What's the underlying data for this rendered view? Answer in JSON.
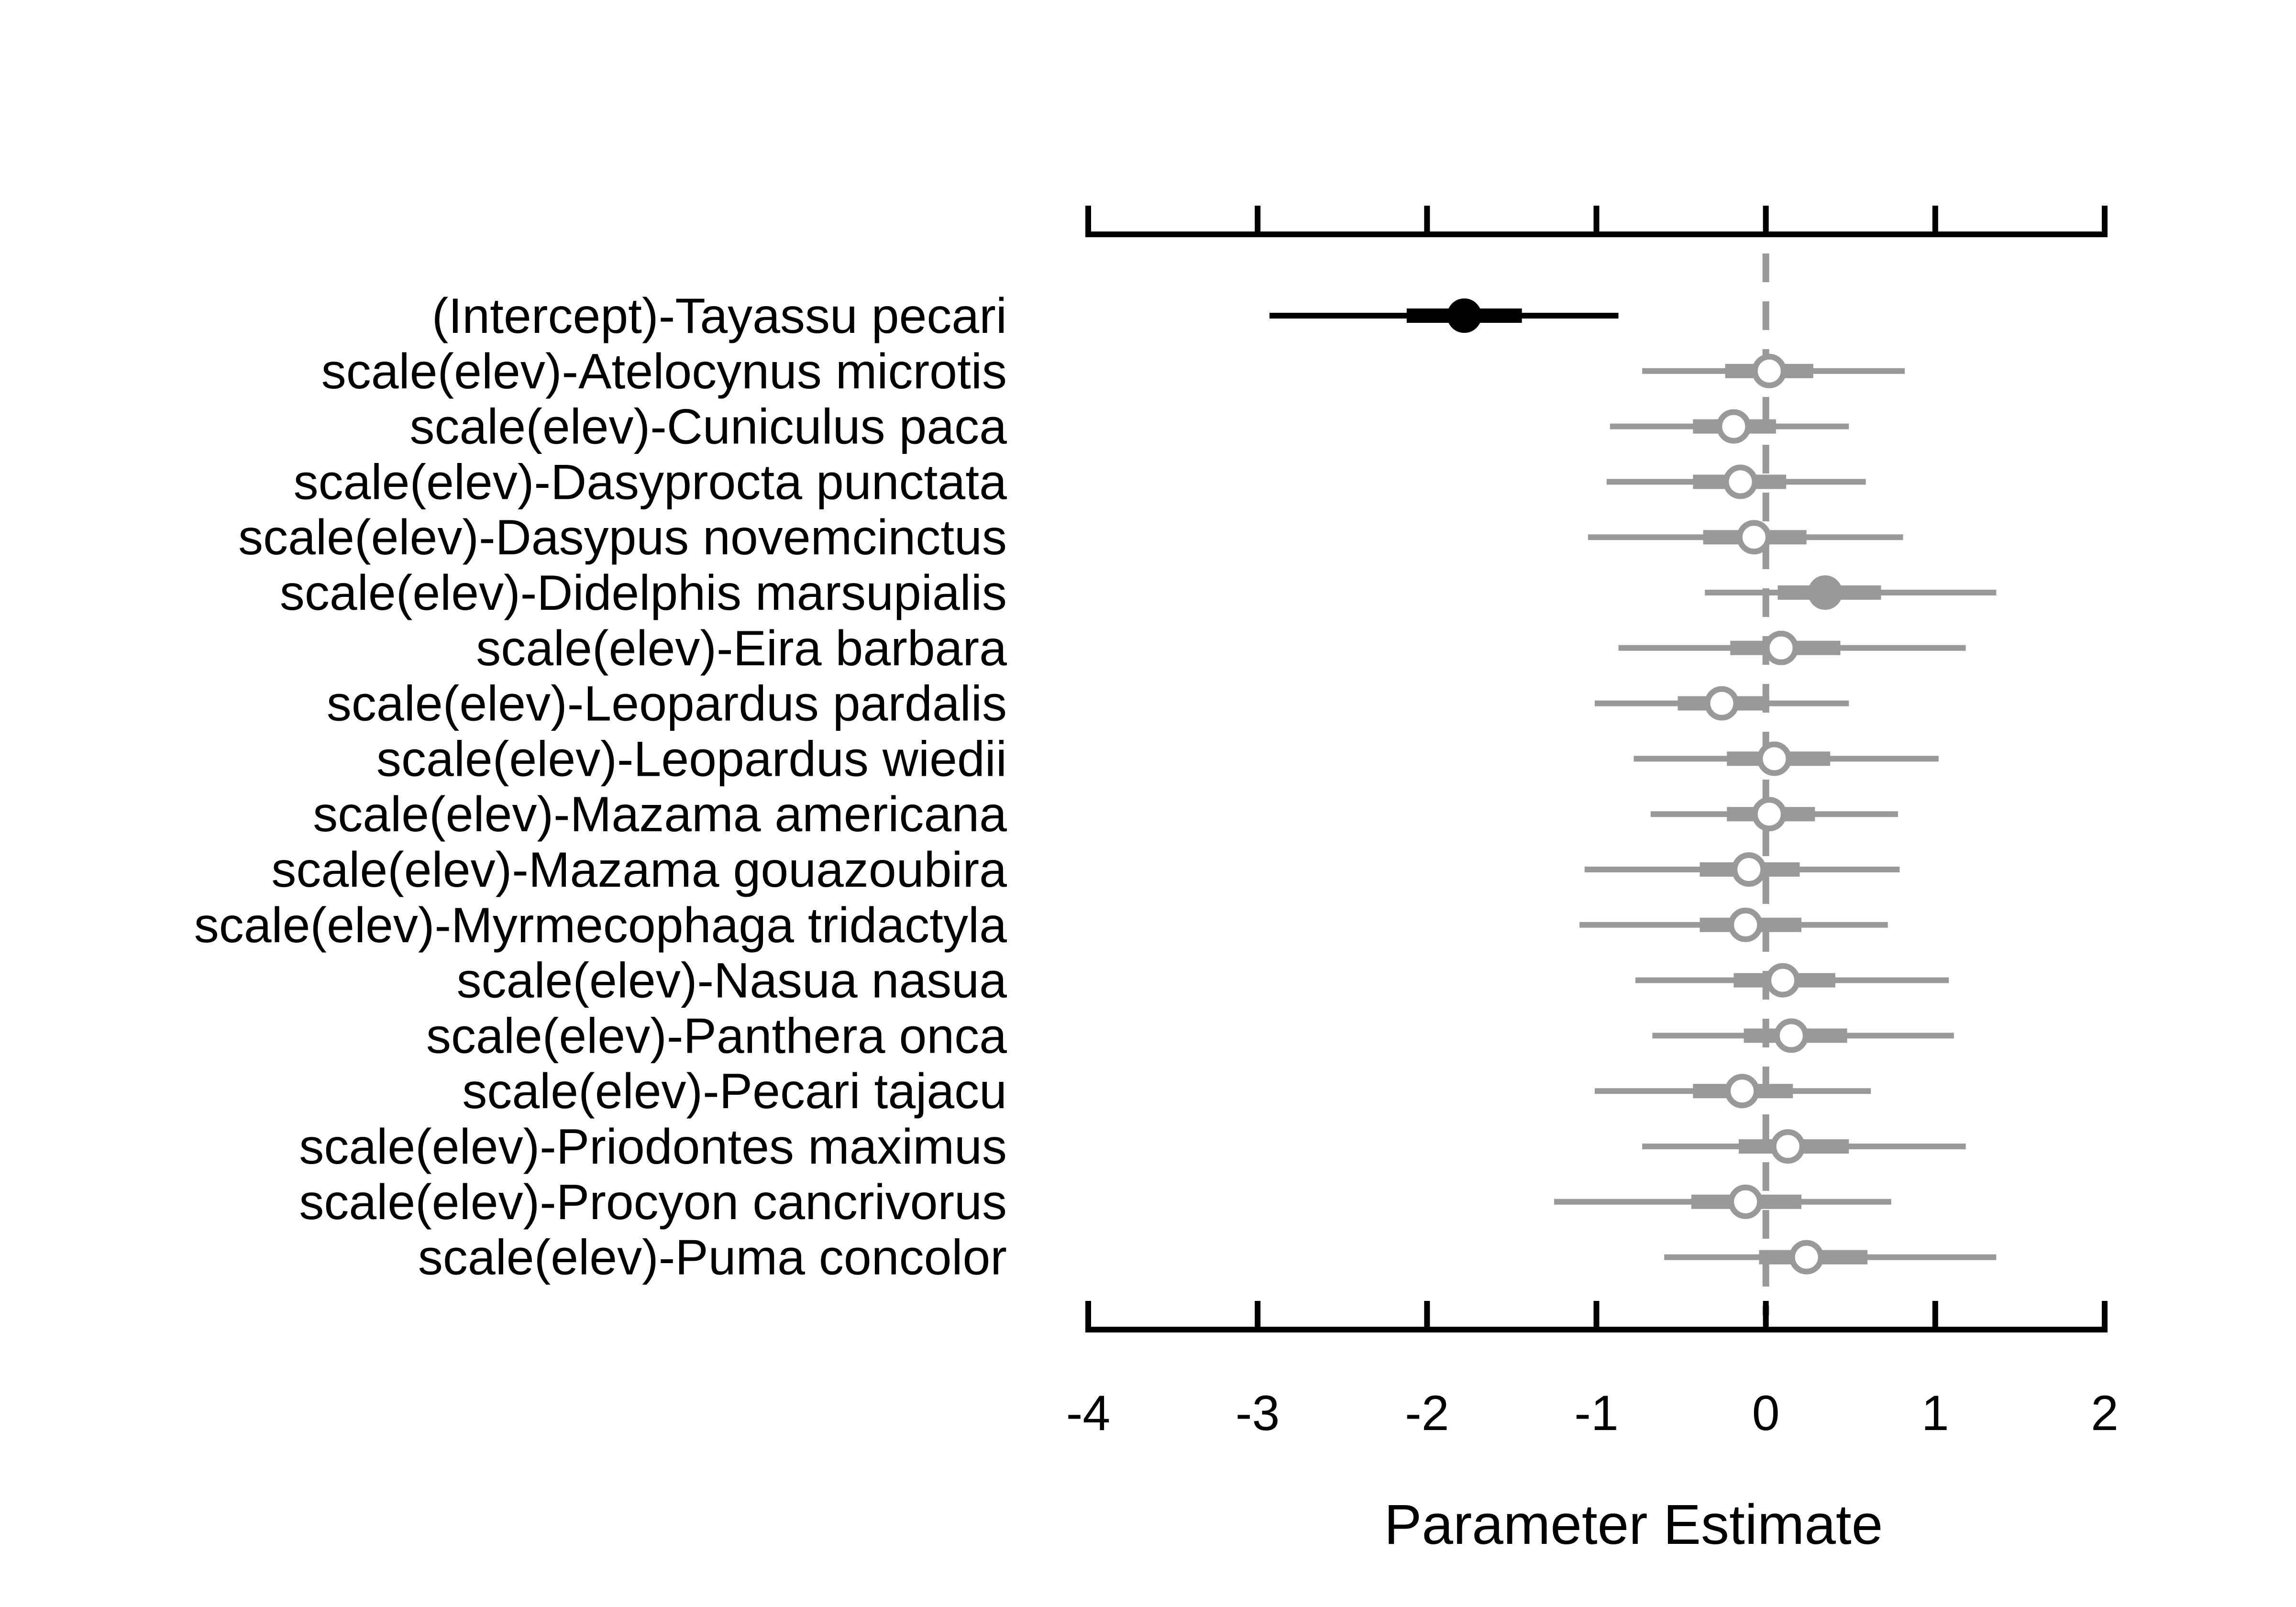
{
  "chart_data": {
    "type": "dot-and-whisker",
    "xlabel": "Parameter Estimate",
    "xlim": [
      -4,
      2
    ],
    "x_ticks": [
      -4,
      -3,
      -2,
      -1,
      0,
      1,
      2
    ],
    "x_tick_labels": [
      "-4",
      "-3",
      "-2",
      "-1",
      "0",
      "1",
      "2"
    ],
    "reference_line": 0,
    "colors": {
      "highlight": "#000000",
      "default": "#999999",
      "reference_line": "#999999",
      "axis": "#000000"
    },
    "rows": [
      {
        "label": "(Intercept)-Tayassu pecari",
        "estimate": -1.78,
        "inner": [
          -2.12,
          -1.44
        ],
        "outer": [
          -2.93,
          -0.87
        ],
        "style": "black-filled"
      },
      {
        "label": "scale(elev)-Atelocynus microtis",
        "estimate": 0.02,
        "inner": [
          -0.24,
          0.28
        ],
        "outer": [
          -0.73,
          0.82
        ],
        "style": "gray-open"
      },
      {
        "label": "scale(elev)-Cuniculus paca",
        "estimate": -0.19,
        "inner": [
          -0.43,
          0.06
        ],
        "outer": [
          -0.92,
          0.49
        ],
        "style": "gray-open"
      },
      {
        "label": "scale(elev)-Dasyprocta punctata",
        "estimate": -0.15,
        "inner": [
          -0.43,
          0.12
        ],
        "outer": [
          -0.94,
          0.59
        ],
        "style": "gray-open"
      },
      {
        "label": "scale(elev)-Dasypus novemcinctus",
        "estimate": -0.07,
        "inner": [
          -0.37,
          0.24
        ],
        "outer": [
          -1.05,
          0.81
        ],
        "style": "gray-open"
      },
      {
        "label": "scale(elev)-Didelphis marsupialis",
        "estimate": 0.35,
        "inner": [
          0.07,
          0.68
        ],
        "outer": [
          -0.36,
          1.36
        ],
        "style": "gray-filled"
      },
      {
        "label": "scale(elev)-Eira barbara",
        "estimate": 0.09,
        "inner": [
          -0.21,
          0.44
        ],
        "outer": [
          -0.87,
          1.18
        ],
        "style": "gray-open"
      },
      {
        "label": "scale(elev)-Leopardus pardalis",
        "estimate": -0.26,
        "inner": [
          -0.52,
          0.02
        ],
        "outer": [
          -1.01,
          0.49
        ],
        "style": "gray-open"
      },
      {
        "label": "scale(elev)-Leopardus wiedii",
        "estimate": 0.05,
        "inner": [
          -0.23,
          0.38
        ],
        "outer": [
          -0.78,
          1.02
        ],
        "style": "gray-open"
      },
      {
        "label": "scale(elev)-Mazama americana",
        "estimate": 0.02,
        "inner": [
          -0.23,
          0.29
        ],
        "outer": [
          -0.68,
          0.78
        ],
        "style": "gray-open"
      },
      {
        "label": "scale(elev)-Mazama gouazoubira",
        "estimate": -0.1,
        "inner": [
          -0.39,
          0.2
        ],
        "outer": [
          -1.07,
          0.79
        ],
        "style": "gray-open"
      },
      {
        "label": "scale(elev)-Myrmecophaga tridactyla",
        "estimate": -0.12,
        "inner": [
          -0.39,
          0.21
        ],
        "outer": [
          -1.1,
          0.72
        ],
        "style": "gray-open"
      },
      {
        "label": "scale(elev)-Nasua nasua",
        "estimate": 0.1,
        "inner": [
          -0.19,
          0.41
        ],
        "outer": [
          -0.77,
          1.08
        ],
        "style": "gray-open"
      },
      {
        "label": "scale(elev)-Panthera onca",
        "estimate": 0.15,
        "inner": [
          -0.13,
          0.48
        ],
        "outer": [
          -0.67,
          1.11
        ],
        "style": "gray-open"
      },
      {
        "label": "scale(elev)-Pecari tajacu",
        "estimate": -0.14,
        "inner": [
          -0.43,
          0.16
        ],
        "outer": [
          -1.01,
          0.62
        ],
        "style": "gray-open"
      },
      {
        "label": "scale(elev)-Priodontes maximus",
        "estimate": 0.13,
        "inner": [
          -0.16,
          0.49
        ],
        "outer": [
          -0.73,
          1.18
        ],
        "style": "gray-open"
      },
      {
        "label": "scale(elev)-Procyon cancrivorus",
        "estimate": -0.12,
        "inner": [
          -0.44,
          0.21
        ],
        "outer": [
          -1.25,
          0.74
        ],
        "style": "gray-open"
      },
      {
        "label": "scale(elev)-Puma concolor",
        "estimate": 0.24,
        "inner": [
          -0.04,
          0.6
        ],
        "outer": [
          -0.6,
          1.36
        ],
        "style": "gray-open"
      }
    ]
  }
}
